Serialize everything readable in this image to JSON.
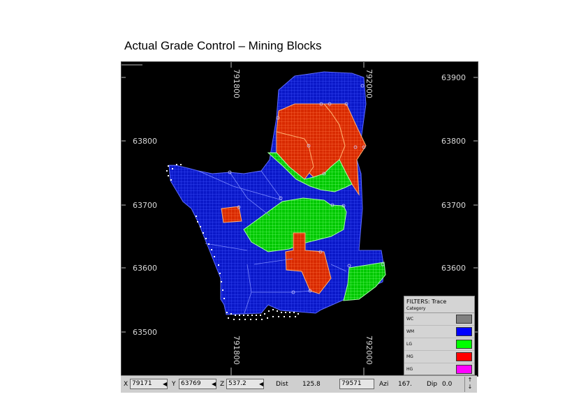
{
  "title": "Actual Grade Control – Mining Blocks",
  "map": {
    "x_labels": [
      "791800",
      "792000"
    ],
    "y_labels": [
      "63900",
      "63800",
      "63700",
      "63600",
      "63500"
    ],
    "colors": {
      "WC": "#808080",
      "WM": "#0018d8",
      "LG": "#00e000",
      "MG": "#e82a00",
      "HG": "#ff00ff"
    }
  },
  "legend": {
    "filter_label": "FILTERS: Trace",
    "category_label": "Category",
    "items": [
      {
        "code": "WC",
        "color": "#808080"
      },
      {
        "code": "WM",
        "color": "#0000ff"
      },
      {
        "code": "LG",
        "color": "#00ff00"
      },
      {
        "code": "MG",
        "color": "#ff0000"
      },
      {
        "code": "HG",
        "color": "#ff00ff"
      }
    ]
  },
  "status": {
    "x_label": "X",
    "x_value": "79171",
    "y_label": "Y",
    "y_value": "63769",
    "z_label": "Z",
    "z_value": "537.2",
    "dist_label": "Dist",
    "dist_value": "125.8",
    "extra_value": "79571",
    "azi_label": "Azi",
    "azi_value": "167.",
    "dip_label": "Dip",
    "dip_value": "0.0",
    "up_arrow": "↑",
    "down_arrow": "↓"
  }
}
